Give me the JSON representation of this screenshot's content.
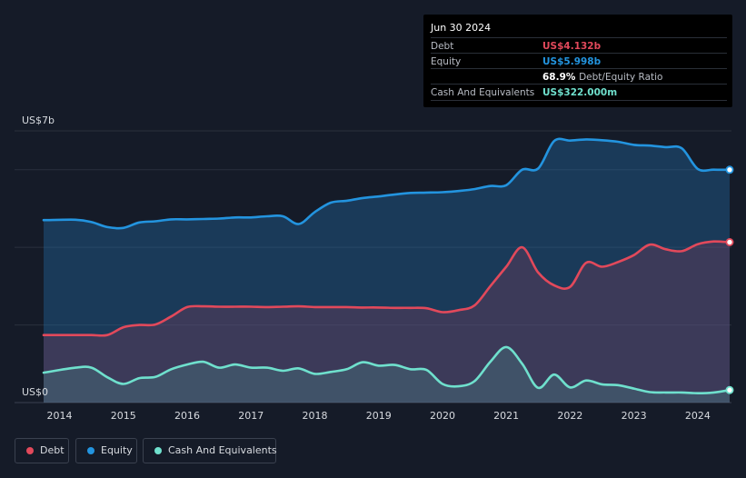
{
  "chart_data": {
    "type": "area",
    "ylabel_top": "US$7b",
    "ylabel_bottom": "US$0",
    "ylim": [
      0,
      7
    ],
    "xlim": [
      2013.75,
      2024.5
    ],
    "x_ticks": [
      "2014",
      "2015",
      "2016",
      "2017",
      "2018",
      "2019",
      "2020",
      "2021",
      "2022",
      "2023",
      "2024"
    ],
    "x_tick_values": [
      2014,
      2015,
      2016,
      2017,
      2018,
      2019,
      2020,
      2021,
      2022,
      2023,
      2024
    ],
    "gridlines": [
      0,
      2,
      4,
      6,
      7
    ],
    "series": [
      {
        "name": "Equity",
        "color": "#2394df",
        "points": [
          [
            2013.75,
            4.7
          ],
          [
            2014.25,
            4.71
          ],
          [
            2014.5,
            4.65
          ],
          [
            2014.75,
            4.52
          ],
          [
            2015.0,
            4.5
          ],
          [
            2015.25,
            4.64
          ],
          [
            2015.5,
            4.67
          ],
          [
            2015.75,
            4.72
          ],
          [
            2016.0,
            4.72
          ],
          [
            2016.25,
            4.73
          ],
          [
            2016.5,
            4.74
          ],
          [
            2016.75,
            4.77
          ],
          [
            2017.0,
            4.77
          ],
          [
            2017.25,
            4.8
          ],
          [
            2017.5,
            4.8
          ],
          [
            2017.75,
            4.6
          ],
          [
            2018.0,
            4.91
          ],
          [
            2018.25,
            5.15
          ],
          [
            2018.5,
            5.2
          ],
          [
            2018.75,
            5.27
          ],
          [
            2019.0,
            5.31
          ],
          [
            2019.25,
            5.36
          ],
          [
            2019.5,
            5.4
          ],
          [
            2019.75,
            5.41
          ],
          [
            2020.0,
            5.42
          ],
          [
            2020.25,
            5.45
          ],
          [
            2020.5,
            5.5
          ],
          [
            2020.75,
            5.58
          ],
          [
            2021.0,
            5.6
          ],
          [
            2021.25,
            6.0
          ],
          [
            2021.5,
            6.03
          ],
          [
            2021.75,
            6.74
          ],
          [
            2022.0,
            6.75
          ],
          [
            2022.25,
            6.78
          ],
          [
            2022.5,
            6.76
          ],
          [
            2022.75,
            6.72
          ],
          [
            2023.0,
            6.64
          ],
          [
            2023.25,
            6.62
          ],
          [
            2023.5,
            6.58
          ],
          [
            2023.75,
            6.55
          ],
          [
            2024.0,
            6.02
          ],
          [
            2024.25,
            6.0
          ],
          [
            2024.5,
            5.998
          ]
        ]
      },
      {
        "name": "Debt",
        "color": "#e2495b",
        "points": [
          [
            2013.75,
            1.74
          ],
          [
            2014.25,
            1.74
          ],
          [
            2014.5,
            1.74
          ],
          [
            2014.75,
            1.74
          ],
          [
            2015.0,
            1.94
          ],
          [
            2015.25,
            2.0
          ],
          [
            2015.5,
            2.01
          ],
          [
            2015.75,
            2.22
          ],
          [
            2016.0,
            2.46
          ],
          [
            2016.25,
            2.48
          ],
          [
            2016.5,
            2.47
          ],
          [
            2016.75,
            2.47
          ],
          [
            2017.0,
            2.47
          ],
          [
            2017.25,
            2.46
          ],
          [
            2017.5,
            2.47
          ],
          [
            2017.75,
            2.48
          ],
          [
            2018.0,
            2.46
          ],
          [
            2018.25,
            2.46
          ],
          [
            2018.5,
            2.46
          ],
          [
            2018.75,
            2.45
          ],
          [
            2019.0,
            2.45
          ],
          [
            2019.25,
            2.44
          ],
          [
            2019.5,
            2.44
          ],
          [
            2019.75,
            2.43
          ],
          [
            2020.0,
            2.33
          ],
          [
            2020.25,
            2.38
          ],
          [
            2020.5,
            2.5
          ],
          [
            2020.75,
            3.0
          ],
          [
            2021.0,
            3.5
          ],
          [
            2021.25,
            4.0
          ],
          [
            2021.5,
            3.35
          ],
          [
            2021.75,
            3.02
          ],
          [
            2022.0,
            2.98
          ],
          [
            2022.25,
            3.6
          ],
          [
            2022.5,
            3.5
          ],
          [
            2022.75,
            3.62
          ],
          [
            2023.0,
            3.8
          ],
          [
            2023.25,
            4.07
          ],
          [
            2023.5,
            3.95
          ],
          [
            2023.75,
            3.9
          ],
          [
            2024.0,
            4.08
          ],
          [
            2024.25,
            4.15
          ],
          [
            2024.5,
            4.132
          ]
        ]
      },
      {
        "name": "Cash And Equivalents",
        "color": "#6fe0cd",
        "points": [
          [
            2013.75,
            0.77
          ],
          [
            2014.25,
            0.9
          ],
          [
            2014.5,
            0.9
          ],
          [
            2014.75,
            0.65
          ],
          [
            2015.0,
            0.48
          ],
          [
            2015.25,
            0.63
          ],
          [
            2015.5,
            0.66
          ],
          [
            2015.75,
            0.86
          ],
          [
            2016.0,
            0.98
          ],
          [
            2016.25,
            1.05
          ],
          [
            2016.5,
            0.9
          ],
          [
            2016.75,
            0.98
          ],
          [
            2017.0,
            0.9
          ],
          [
            2017.25,
            0.9
          ],
          [
            2017.5,
            0.82
          ],
          [
            2017.75,
            0.88
          ],
          [
            2018.0,
            0.74
          ],
          [
            2018.25,
            0.79
          ],
          [
            2018.5,
            0.86
          ],
          [
            2018.75,
            1.04
          ],
          [
            2019.0,
            0.95
          ],
          [
            2019.25,
            0.97
          ],
          [
            2019.5,
            0.86
          ],
          [
            2019.75,
            0.84
          ],
          [
            2020.0,
            0.48
          ],
          [
            2020.25,
            0.42
          ],
          [
            2020.5,
            0.55
          ],
          [
            2020.75,
            1.05
          ],
          [
            2021.0,
            1.43
          ],
          [
            2021.25,
            1.0
          ],
          [
            2021.5,
            0.38
          ],
          [
            2021.75,
            0.72
          ],
          [
            2022.0,
            0.39
          ],
          [
            2022.25,
            0.57
          ],
          [
            2022.5,
            0.47
          ],
          [
            2022.75,
            0.45
          ],
          [
            2023.0,
            0.36
          ],
          [
            2023.25,
            0.27
          ],
          [
            2023.5,
            0.26
          ],
          [
            2023.75,
            0.26
          ],
          [
            2024.0,
            0.24
          ],
          [
            2024.25,
            0.26
          ],
          [
            2024.5,
            0.322
          ]
        ]
      }
    ]
  },
  "tooltip": {
    "date": "Jun 30 2024",
    "rows": [
      {
        "label": "Debt",
        "value": "US$4.132b",
        "color": "#e2495b"
      },
      {
        "label": "Equity",
        "value": "US$5.998b",
        "color": "#2394df"
      },
      {
        "label": "",
        "value": "68.9%",
        "suffix": "Debt/Equity Ratio",
        "color": "#ffffff"
      },
      {
        "label": "Cash And Equivalents",
        "value": "US$322.000m",
        "color": "#6fe0cd"
      }
    ]
  },
  "legend": [
    {
      "label": "Debt",
      "color": "#e2495b"
    },
    {
      "label": "Equity",
      "color": "#2394df"
    },
    {
      "label": "Cash And Equivalents",
      "color": "#6fe0cd"
    }
  ]
}
